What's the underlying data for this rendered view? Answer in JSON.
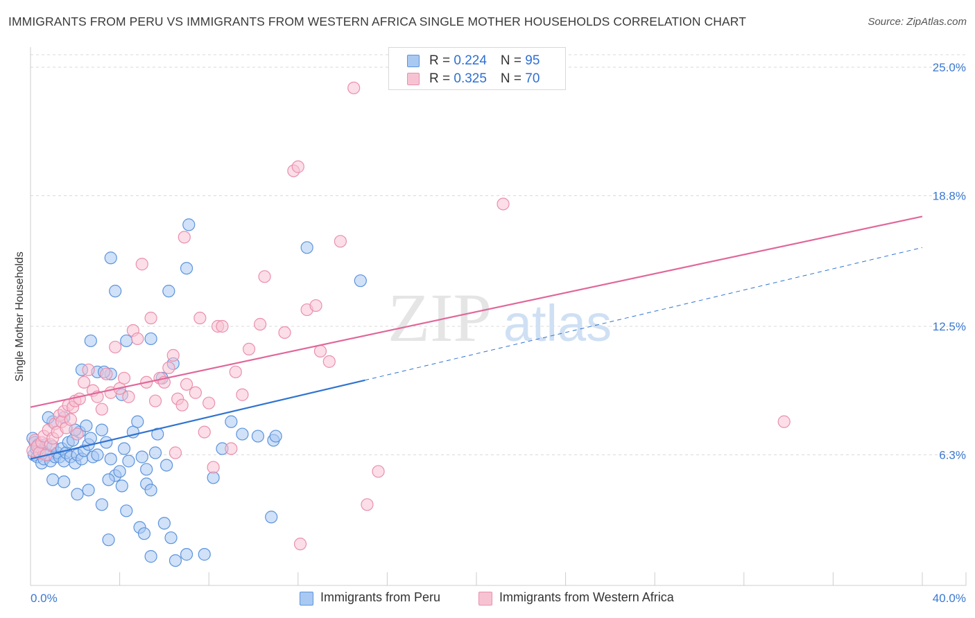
{
  "title": "IMMIGRANTS FROM PERU VS IMMIGRANTS FROM WESTERN AFRICA SINGLE MOTHER HOUSEHOLDS CORRELATION CHART",
  "source": "Source: ZipAtlas.com",
  "watermark": {
    "zip": "ZIP",
    "atlas": "atlas"
  },
  "legend_top": [
    {
      "r_label": "R = ",
      "r_value": "0.224",
      "n_label": "N = ",
      "n_value": "95"
    },
    {
      "r_label": "R = ",
      "r_value": "0.325",
      "n_label": "N = ",
      "n_value": "70"
    }
  ],
  "legend_bottom": [
    "Immigrants from Peru",
    "Immigrants from Western Africa"
  ],
  "colors": {
    "peru_fill": "#a9c9f2",
    "peru_stroke": "#5b93dc",
    "peru_line": "#2f73d0",
    "wa_fill": "#f7c3d3",
    "wa_stroke": "#ea8fac",
    "wa_line": "#e0679a",
    "axis_text": "#3a78d0",
    "grid": "#d9d9d9"
  },
  "chart_data": {
    "type": "scatter",
    "title": "IMMIGRANTS FROM PERU VS IMMIGRANTS FROM WESTERN AFRICA SINGLE MOTHER HOUSEHOLDS CORRELATION CHART",
    "xlabel": "",
    "ylabel": "Single Mother Households",
    "xlim": [
      0,
      40
    ],
    "ylim": [
      0,
      26
    ],
    "x_tick_labels": [
      "0.0%",
      "40.0%"
    ],
    "y_ticks": [
      6.3,
      12.5,
      18.8,
      25.0
    ],
    "y_tick_labels": [
      "6.3%",
      "12.5%",
      "18.8%",
      "25.0%"
    ],
    "grid": true,
    "legend_position": "top-center",
    "series": [
      {
        "name": "Immigrants from Peru",
        "R": 0.224,
        "N": 95,
        "trend": {
          "x0": 0.0,
          "y0": 6.1,
          "x1": 15.0,
          "y1": 9.9,
          "dashed_to_x": 40.0,
          "dashed_to_y": 16.3
        },
        "points": [
          [
            0.1,
            7.1
          ],
          [
            0.15,
            6.3
          ],
          [
            0.2,
            6.9
          ],
          [
            0.25,
            6.6
          ],
          [
            0.3,
            6.2
          ],
          [
            0.35,
            6.8
          ],
          [
            0.4,
            6.4
          ],
          [
            0.5,
            5.9
          ],
          [
            0.55,
            6.5
          ],
          [
            0.6,
            6.1
          ],
          [
            0.7,
            6.8
          ],
          [
            0.8,
            6.3
          ],
          [
            0.9,
            6.0
          ],
          [
            1.0,
            6.7
          ],
          [
            1.0,
            7.9
          ],
          [
            1.1,
            6.2
          ],
          [
            1.2,
            6.4
          ],
          [
            1.3,
            6.2
          ],
          [
            1.4,
            6.6
          ],
          [
            1.5,
            6.0
          ],
          [
            1.6,
            6.4
          ],
          [
            1.7,
            6.9
          ],
          [
            1.8,
            6.2
          ],
          [
            1.9,
            7.0
          ],
          [
            2.0,
            5.9
          ],
          [
            2.1,
            6.3
          ],
          [
            2.2,
            7.4
          ],
          [
            2.3,
            6.1
          ],
          [
            2.4,
            6.5
          ],
          [
            2.5,
            7.7
          ],
          [
            0.8,
            8.1
          ],
          [
            1.5,
            8.1
          ],
          [
            2.0,
            7.5
          ],
          [
            2.6,
            6.8
          ],
          [
            2.7,
            7.1
          ],
          [
            2.8,
            6.2
          ],
          [
            3.0,
            6.3
          ],
          [
            3.2,
            7.5
          ],
          [
            3.4,
            6.9
          ],
          [
            3.6,
            6.1
          ],
          [
            3.8,
            5.3
          ],
          [
            4.0,
            5.5
          ],
          [
            4.2,
            6.6
          ],
          [
            4.4,
            6.0
          ],
          [
            4.6,
            7.4
          ],
          [
            4.8,
            7.9
          ],
          [
            5.0,
            6.2
          ],
          [
            5.2,
            4.9
          ],
          [
            5.4,
            4.6
          ],
          [
            5.6,
            6.4
          ],
          [
            1.0,
            5.1
          ],
          [
            1.5,
            5.0
          ],
          [
            2.1,
            4.4
          ],
          [
            2.6,
            4.6
          ],
          [
            3.2,
            3.9
          ],
          [
            3.5,
            5.1
          ],
          [
            4.1,
            4.8
          ],
          [
            4.3,
            3.6
          ],
          [
            4.9,
            2.8
          ],
          [
            5.1,
            2.5
          ],
          [
            5.4,
            1.4
          ],
          [
            6.0,
            3.0
          ],
          [
            6.3,
            2.3
          ],
          [
            6.5,
            1.2
          ],
          [
            7.0,
            1.5
          ],
          [
            7.8,
            1.5
          ],
          [
            8.2,
            5.2
          ],
          [
            8.6,
            6.6
          ],
          [
            9.0,
            7.9
          ],
          [
            9.5,
            7.3
          ],
          [
            3.5,
            2.2
          ],
          [
            3.6,
            10.2
          ],
          [
            3.0,
            10.3
          ],
          [
            2.3,
            10.4
          ],
          [
            2.7,
            11.8
          ],
          [
            3.3,
            10.3
          ],
          [
            4.1,
            9.2
          ],
          [
            4.3,
            11.8
          ],
          [
            3.8,
            14.2
          ],
          [
            5.4,
            11.9
          ],
          [
            5.7,
            7.3
          ],
          [
            6.1,
            5.8
          ],
          [
            5.2,
            5.6
          ],
          [
            5.9,
            10.0
          ],
          [
            6.4,
            10.7
          ],
          [
            7.0,
            15.3
          ],
          [
            7.1,
            17.4
          ],
          [
            6.2,
            14.2
          ],
          [
            3.6,
            15.8
          ],
          [
            10.2,
            7.2
          ],
          [
            12.4,
            16.3
          ],
          [
            14.8,
            14.7
          ],
          [
            10.9,
            7.0
          ],
          [
            11.0,
            7.2
          ],
          [
            10.8,
            3.3
          ]
        ]
      },
      {
        "name": "Immigrants from Western Africa",
        "R": 0.325,
        "N": 70,
        "trend": {
          "x0": 0.0,
          "y0": 8.6,
          "x1": 40.0,
          "y1": 17.8
        },
        "points": [
          [
            0.1,
            6.5
          ],
          [
            0.2,
            7.0
          ],
          [
            0.3,
            6.7
          ],
          [
            0.4,
            6.4
          ],
          [
            0.5,
            6.9
          ],
          [
            0.6,
            7.2
          ],
          [
            0.7,
            6.3
          ],
          [
            0.8,
            7.5
          ],
          [
            0.9,
            6.8
          ],
          [
            1.0,
            7.1
          ],
          [
            1.1,
            7.8
          ],
          [
            1.2,
            7.4
          ],
          [
            1.3,
            8.2
          ],
          [
            1.4,
            7.9
          ],
          [
            1.5,
            8.4
          ],
          [
            1.6,
            7.6
          ],
          [
            1.7,
            8.7
          ],
          [
            1.8,
            8.0
          ],
          [
            1.9,
            8.6
          ],
          [
            2.0,
            8.9
          ],
          [
            2.1,
            7.3
          ],
          [
            2.2,
            9.0
          ],
          [
            2.4,
            9.8
          ],
          [
            2.6,
            10.4
          ],
          [
            2.8,
            9.4
          ],
          [
            3.0,
            9.1
          ],
          [
            3.2,
            8.5
          ],
          [
            3.4,
            10.2
          ],
          [
            3.6,
            9.3
          ],
          [
            3.8,
            11.5
          ],
          [
            4.0,
            9.5
          ],
          [
            4.2,
            10.0
          ],
          [
            4.4,
            9.1
          ],
          [
            4.6,
            12.3
          ],
          [
            4.8,
            11.9
          ],
          [
            5.0,
            15.5
          ],
          [
            5.2,
            9.8
          ],
          [
            5.4,
            12.9
          ],
          [
            5.6,
            8.9
          ],
          [
            5.8,
            10.0
          ],
          [
            6.0,
            9.8
          ],
          [
            6.2,
            10.5
          ],
          [
            6.4,
            11.1
          ],
          [
            6.6,
            9.0
          ],
          [
            6.8,
            8.7
          ],
          [
            7.0,
            9.7
          ],
          [
            7.4,
            9.3
          ],
          [
            7.6,
            12.9
          ],
          [
            7.8,
            7.4
          ],
          [
            8.0,
            8.8
          ],
          [
            8.2,
            5.7
          ],
          [
            8.4,
            12.5
          ],
          [
            8.6,
            12.5
          ],
          [
            9.2,
            10.3
          ],
          [
            9.5,
            9.2
          ],
          [
            9.8,
            11.4
          ],
          [
            10.3,
            12.6
          ],
          [
            10.5,
            14.9
          ],
          [
            11.4,
            12.2
          ],
          [
            11.8,
            20.0
          ],
          [
            12.0,
            20.2
          ],
          [
            12.1,
            2.0
          ],
          [
            12.4,
            13.3
          ],
          [
            12.8,
            13.5
          ],
          [
            13.0,
            11.3
          ],
          [
            13.4,
            10.8
          ],
          [
            13.9,
            16.6
          ],
          [
            15.1,
            3.9
          ],
          [
            15.6,
            5.5
          ],
          [
            21.2,
            18.4
          ]
        ],
        "extra_points": [
          [
            14.5,
            24.0
          ],
          [
            33.8,
            7.9
          ],
          [
            6.9,
            16.8
          ],
          [
            9.0,
            6.6
          ],
          [
            6.5,
            6.4
          ]
        ]
      }
    ]
  }
}
